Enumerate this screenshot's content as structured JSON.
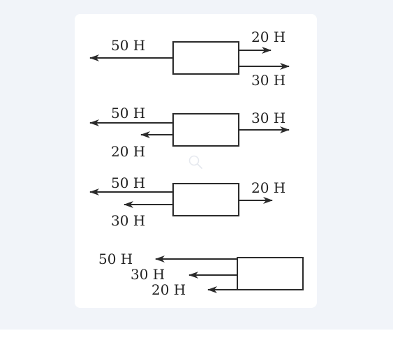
{
  "diagram": {
    "variants": [
      {
        "labels": {
          "left_top": "50 H",
          "right_top": "20 H",
          "right_bottom": "30 H"
        }
      },
      {
        "labels": {
          "left_top": "50 H",
          "left_bottom": "20 H",
          "right_top": "30 H"
        }
      },
      {
        "labels": {
          "left_top": "50 H",
          "left_bottom": "30 H",
          "right_top": "20 H"
        }
      },
      {
        "labels": {
          "left_1": "50 H",
          "left_2": "30 H",
          "left_3": "20 H"
        }
      }
    ]
  },
  "colors": {
    "ink": "#2b2b2b",
    "card": "#ffffff",
    "backdrop": "#f1f4f9"
  },
  "icons": {
    "overlay": "zoom-icon"
  }
}
